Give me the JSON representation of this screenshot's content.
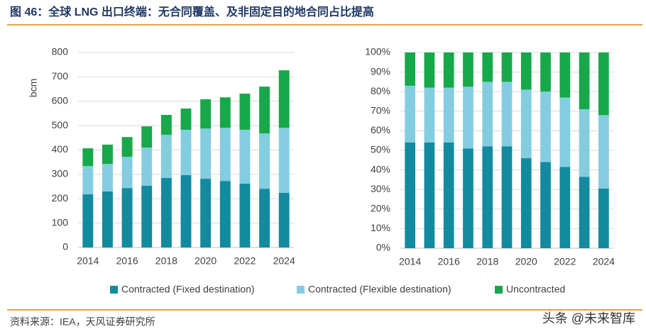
{
  "header": {
    "title": "图 46：全球 LNG 出口终端：无合同覆盖、及非固定目的地合同占比提高"
  },
  "chart_data": [
    {
      "type": "stacked_bar",
      "ylabel": "bcm",
      "categories": [
        "2014",
        null,
        "2016",
        null,
        "2018",
        null,
        "2020",
        null,
        "2022",
        null,
        "2024"
      ],
      "series": [
        {
          "name": "Contracted (Fixed destination)",
          "color": "#138a9e",
          "values": [
            218,
            230,
            244,
            253,
            285,
            297,
            282,
            273,
            262,
            241,
            224
          ]
        },
        {
          "name": "Contracted (Flexible destination)",
          "color": "#84cde0",
          "values": [
            116,
            113,
            128,
            157,
            177,
            186,
            206,
            218,
            221,
            227,
            267
          ]
        },
        {
          "name": "Uncontracted",
          "color": "#17a84a",
          "values": [
            73,
            79,
            81,
            87,
            82,
            87,
            120,
            125,
            148,
            192,
            236
          ]
        }
      ],
      "ylim": [
        0,
        800
      ],
      "yticks": [
        0,
        100,
        200,
        300,
        400,
        500,
        600,
        700,
        800
      ],
      "grid": true
    },
    {
      "type": "stacked_bar",
      "categories": [
        "2014",
        null,
        "2016",
        null,
        "2018",
        null,
        "2020",
        null,
        "2022",
        null,
        "2024"
      ],
      "series": [
        {
          "name": "Contracted (Fixed destination)",
          "color": "#138a9e",
          "values": [
            54,
            54,
            54,
            51,
            52,
            52,
            46,
            44,
            41.5,
            36.5,
            30.5
          ]
        },
        {
          "name": "Contracted (Flexible destination)",
          "color": "#84cde0",
          "values": [
            29,
            28,
            28,
            31.5,
            33,
            33,
            35,
            36,
            35.5,
            34.5,
            37.5
          ]
        },
        {
          "name": "Uncontracted",
          "color": "#17a84a",
          "values": [
            17,
            18,
            18,
            17.5,
            15,
            15,
            19,
            20,
            23,
            29,
            32
          ]
        }
      ],
      "ylim": [
        0,
        100
      ],
      "yticks": [
        {
          "value": 0,
          "label": "0%"
        },
        {
          "value": 10,
          "label": "10%"
        },
        {
          "value": 20,
          "label": "20%"
        },
        {
          "value": 30,
          "label": "30%"
        },
        {
          "value": 40,
          "label": "40%"
        },
        {
          "value": 50,
          "label": "50%"
        },
        {
          "value": 60,
          "label": "60%"
        },
        {
          "value": 70,
          "label": "70%"
        },
        {
          "value": 80,
          "label": "80%"
        },
        {
          "value": 90,
          "label": "90%"
        },
        {
          "value": 100,
          "label": "100%"
        }
      ],
      "grid": true
    }
  ],
  "source": "资料来源：IEA，天风证券研究所",
  "watermark": "头条 @未来智库"
}
